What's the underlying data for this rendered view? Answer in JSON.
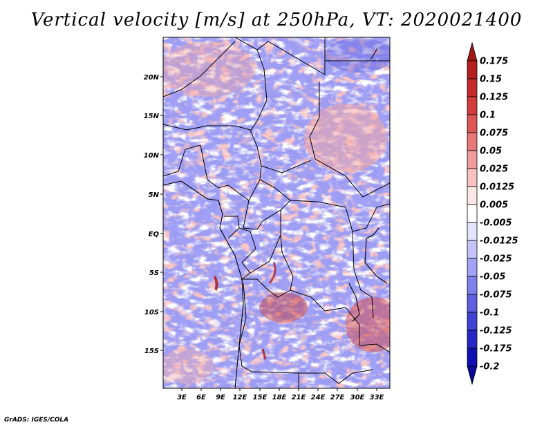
{
  "title": "Vertical velocity [m/s] at 250hPa, VT: 2020021400",
  "credit": "GrADS: IGES/COLA",
  "map": {
    "lat_labels": [
      "20N",
      "15N",
      "10N",
      "5N",
      "EQ",
      "5S",
      "10S",
      "15S"
    ],
    "lon_labels": [
      "3E",
      "6E",
      "9E",
      "12E",
      "15E",
      "18E",
      "21E",
      "24E",
      "27E",
      "30E",
      "33E"
    ]
  },
  "colorbar": {
    "labels": [
      "0.175",
      "0.15",
      "0.125",
      "0.1",
      "0.075",
      "0.05",
      "0.025",
      "0.0125",
      "0.005",
      "-0.005",
      "-0.0125",
      "-0.025",
      "-0.05",
      "-0.075",
      "-0.1",
      "-0.125",
      "-0.175",
      "-0.2"
    ],
    "colors": [
      "#a11717",
      "#b41f1f",
      "#c52b2b",
      "#d33c3c",
      "#df5656",
      "#e87777",
      "#f19c9c",
      "#f8c2c2",
      "#fde6e6",
      "#ffffff",
      "#e4e4fe",
      "#c4c4fb",
      "#a1a1f5",
      "#8080ec",
      "#5f5fe1",
      "#4141d4",
      "#2727c5",
      "#1010b0",
      "#07079a"
    ]
  }
}
